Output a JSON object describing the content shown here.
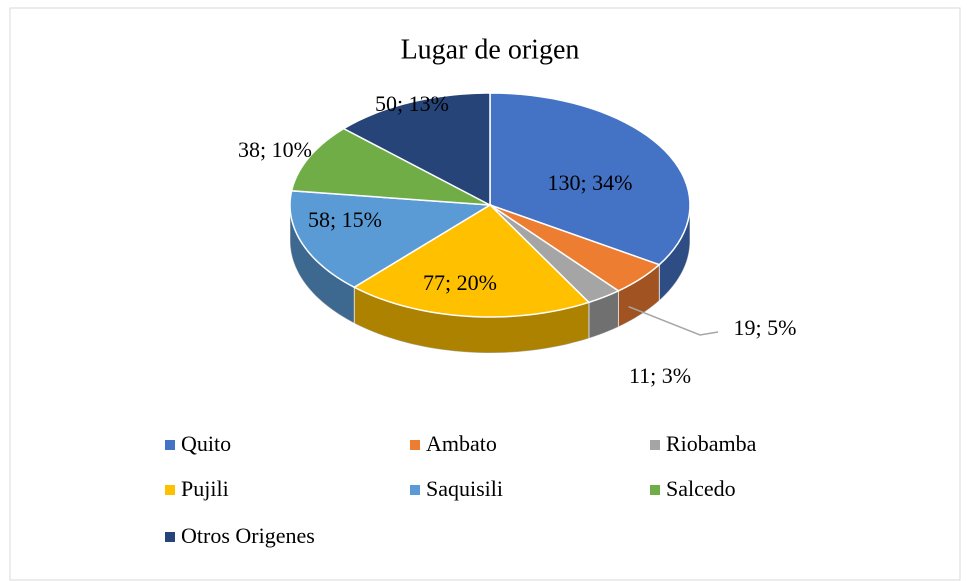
{
  "chart_data": {
    "type": "pie",
    "title": "Lugar de origen",
    "categories": [
      "Quito",
      "Ambato",
      "Riobamba",
      "Pujili",
      "Saquisili",
      "Salcedo",
      "Otros Origenes"
    ],
    "values": [
      130,
      19,
      11,
      77,
      58,
      38,
      50
    ],
    "value_labels": [
      "130; 34%",
      "19; 5%",
      "11; 3%",
      "77; 20%",
      "58; 15%",
      "38; 10%",
      "50; 13%"
    ],
    "colors": [
      "#4472c4",
      "#ed7d31",
      "#a5a5a5",
      "#ffc000",
      "#5b9bd5",
      "#70ad47",
      "#264478"
    ],
    "legend": "bottom"
  }
}
